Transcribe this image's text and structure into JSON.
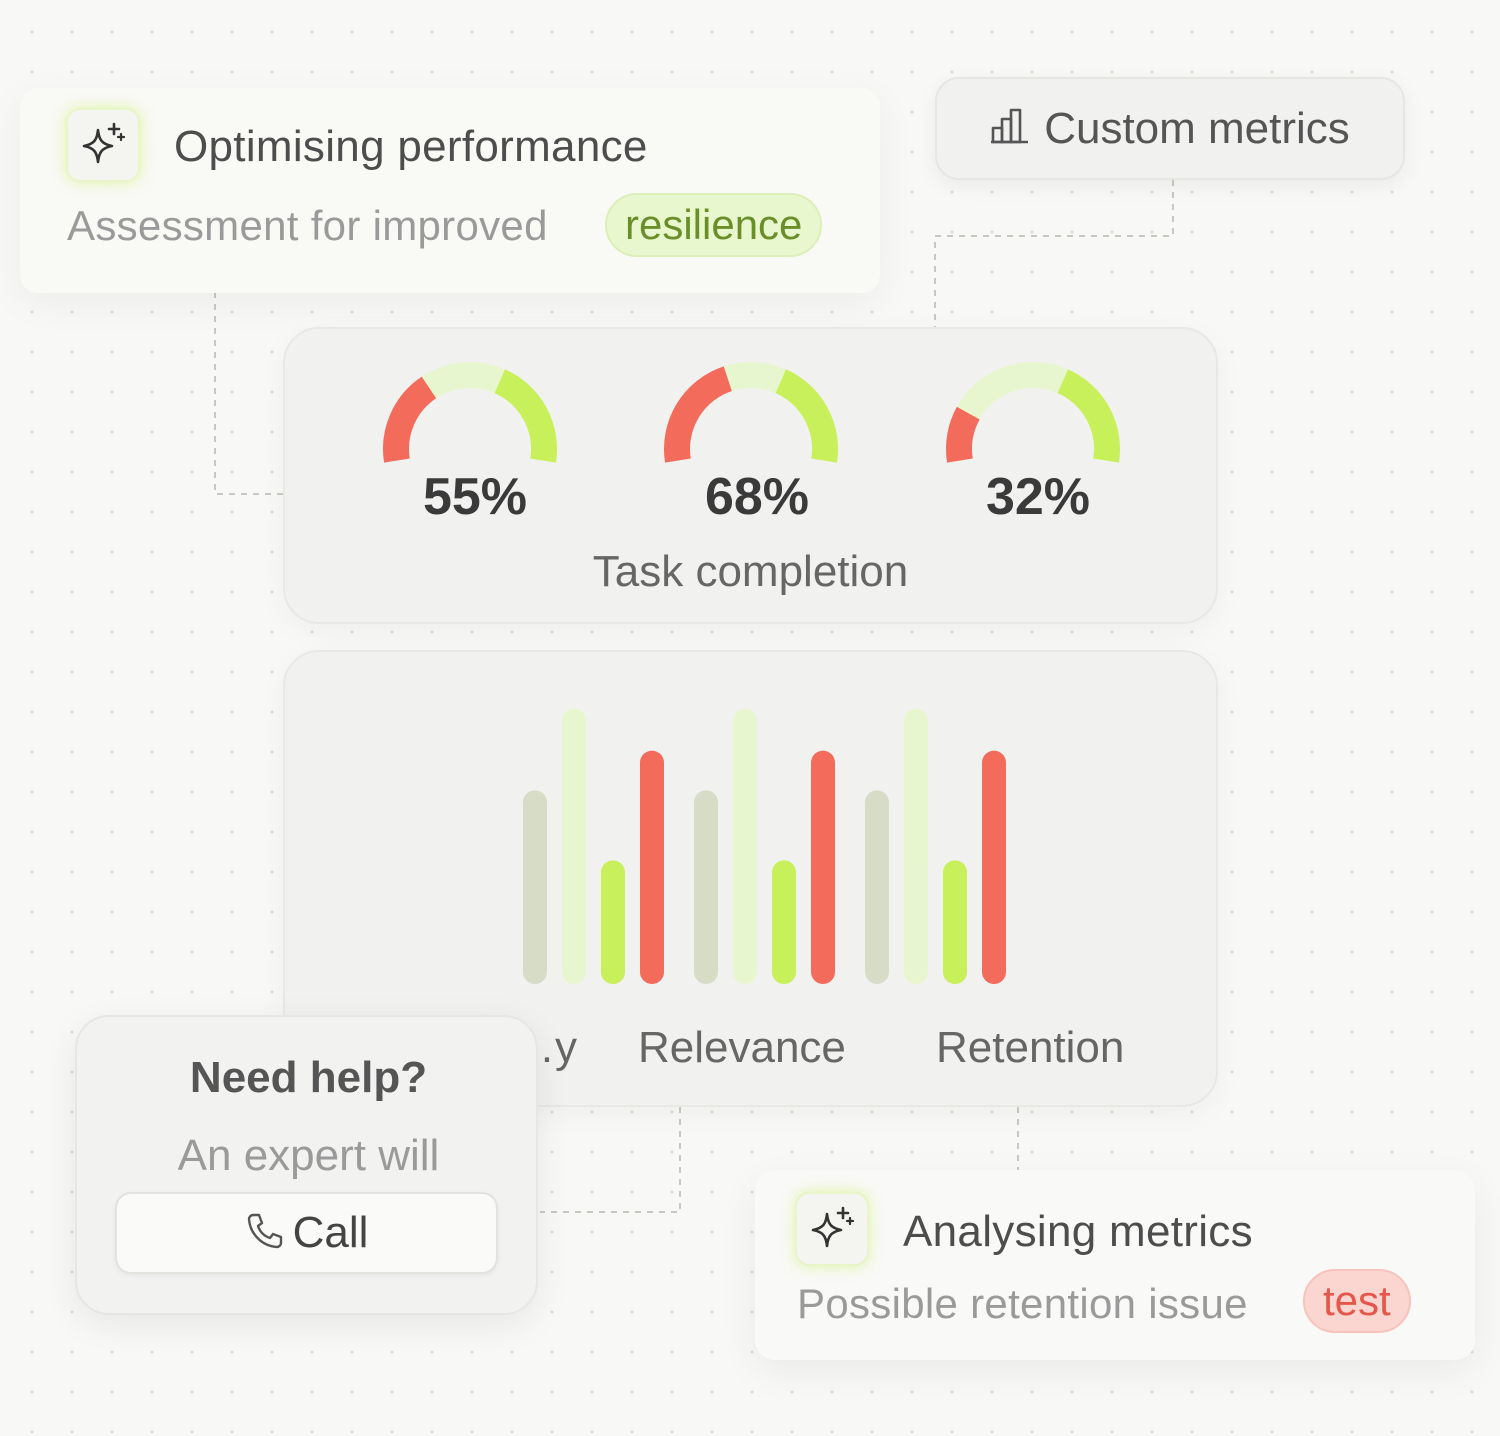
{
  "notification_top": {
    "title": "Optimising performance",
    "subtitle": "Assessment for improved",
    "tag": "resilience",
    "icon": "sparkle-icon"
  },
  "custom_metrics": {
    "label": "Custom metrics",
    "icon": "bar-chart-icon"
  },
  "gauges": {
    "caption": "Task completion",
    "items": [
      {
        "value": 55,
        "label": "55%"
      },
      {
        "value": 68,
        "label": "68%"
      },
      {
        "value": 32,
        "label": "32%"
      }
    ]
  },
  "chart_data": {
    "type": "bar",
    "categories": [
      "…y",
      "Relevance",
      "Retention"
    ],
    "series": [
      {
        "color": "#d6dcc6",
        "values": [
          83,
          83,
          83
        ]
      },
      {
        "color": "#e8f6cf",
        "values": [
          118,
          118,
          118
        ]
      },
      {
        "color": "#c8f05a",
        "values": [
          53,
          53,
          53
        ]
      },
      {
        "color": "#f26b5b",
        "values": [
          100,
          100,
          100
        ]
      }
    ],
    "ylim": [
      0,
      120
    ]
  },
  "help": {
    "title": "Need help?",
    "text": "An expert will",
    "button_label": "Call",
    "icon": "phone-icon"
  },
  "notification_bottom": {
    "title": "Analysing metrics",
    "subtitle": "Possible retention issue",
    "tag": "test",
    "icon": "sparkle-icon"
  },
  "colors": {
    "red": "#f26b5b",
    "lime": "#c8f05a",
    "pale_green": "#e8f6cf",
    "gray_green": "#d6dcc6"
  }
}
